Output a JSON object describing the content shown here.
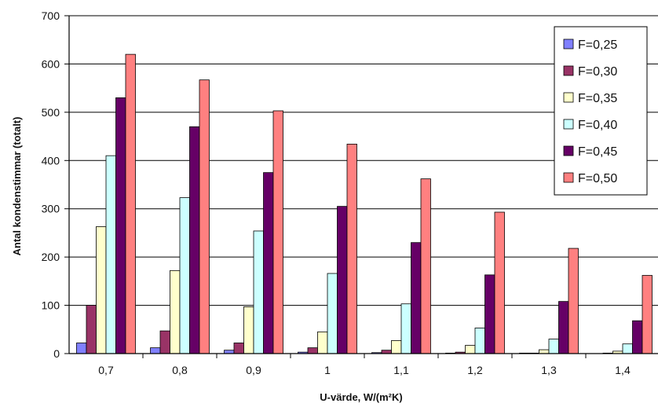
{
  "chart_data": {
    "type": "bar",
    "xlabel": "U-värde, W/(m²K)",
    "ylabel": "Antal kondenstimmar (totalt)",
    "ylim": [
      0,
      700
    ],
    "yticks": [
      "0",
      "100",
      "200",
      "300",
      "400",
      "500",
      "600",
      "700"
    ],
    "categories": [
      "0,7",
      "0,8",
      "0,9",
      "1",
      "1,1",
      "1,2",
      "1,3",
      "1,4"
    ],
    "grid": "horizontal",
    "legend_position": "top-right",
    "series": [
      {
        "name": "F=0,25",
        "color": "#8080ff",
        "values": [
          22,
          12,
          7,
          3,
          2,
          1,
          1,
          0
        ]
      },
      {
        "name": "F=0,30",
        "color": "#993366",
        "values": [
          100,
          47,
          22,
          12,
          7,
          3,
          1,
          1
        ]
      },
      {
        "name": "F=0,35",
        "color": "#ffffcc",
        "values": [
          263,
          172,
          97,
          45,
          27,
          17,
          8,
          5
        ]
      },
      {
        "name": "F=0,40",
        "color": "#ccffff",
        "values": [
          410,
          323,
          254,
          166,
          103,
          53,
          30,
          20
        ]
      },
      {
        "name": "F=0,45",
        "color": "#660066",
        "values": [
          530,
          470,
          375,
          305,
          230,
          163,
          108,
          68
        ]
      },
      {
        "name": "F=0,50",
        "color": "#ff8080",
        "values": [
          620,
          567,
          503,
          434,
          362,
          293,
          218,
          162
        ]
      }
    ]
  }
}
